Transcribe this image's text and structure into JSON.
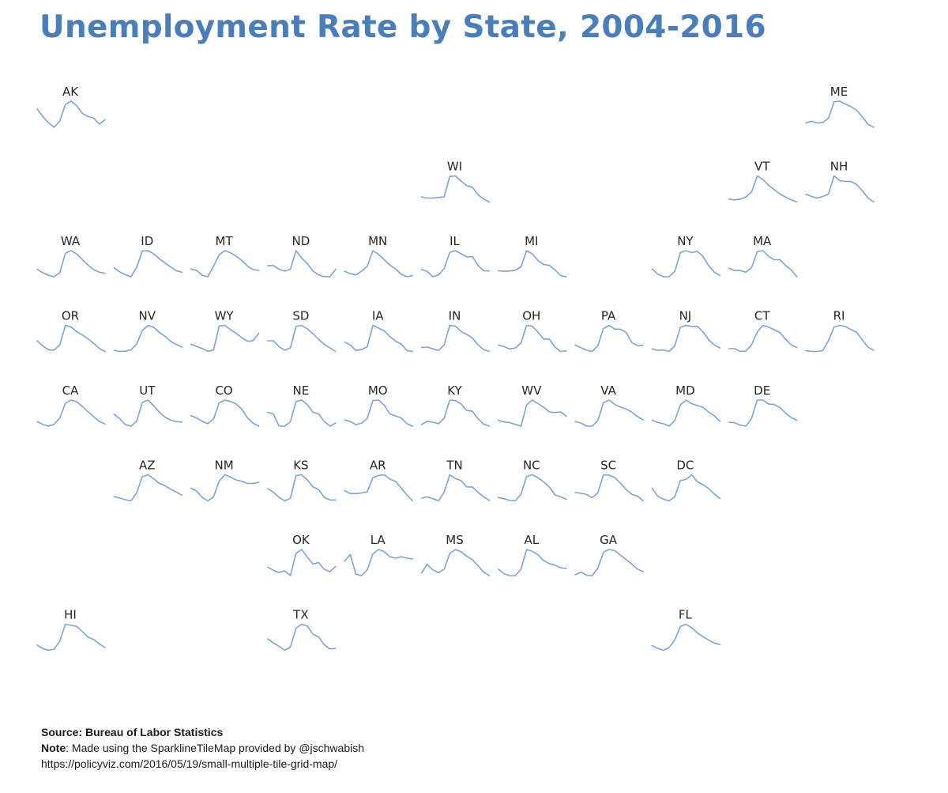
{
  "header": {
    "title": "Unemployment Rate by State, 2004-2016"
  },
  "footer": {
    "source": "Source: Bureau of Labor Statistics",
    "note_label": "Note",
    "note_text": ": Made using the SparklineTileMap provided by @jschwabish",
    "url": "https://policyviz.com/2016/05/19/small-multiple-tile-grid-map/"
  },
  "colors": {
    "title": "#4a7ebb",
    "sparkline": "#7ea3d3",
    "label": "#262626"
  },
  "chart_data": {
    "type": "line",
    "chart_form": "sparkline tile grid map",
    "x": [
      2004,
      2005,
      2006,
      2007,
      2008,
      2009,
      2010,
      2011,
      2012,
      2013,
      2014,
      2015,
      2016
    ],
    "y_scale": "independent per tile",
    "grid": false,
    "series": [
      {
        "name": "AK",
        "row": 0,
        "col": 0,
        "values": [
          7.4,
          6.9,
          6.5,
          6.2,
          6.6,
          7.7,
          7.9,
          7.6,
          7.1,
          6.9,
          6.8,
          6.4,
          6.7
        ]
      },
      {
        "name": "ME",
        "row": 0,
        "col": 10,
        "values": [
          4.6,
          4.9,
          4.6,
          4.7,
          5.4,
          8.1,
          8.2,
          7.7,
          7.3,
          6.7,
          5.6,
          4.4,
          3.9
        ]
      },
      {
        "name": "WI",
        "row": 1,
        "col": 5,
        "values": [
          5.0,
          4.8,
          4.8,
          4.9,
          5.0,
          8.6,
          8.7,
          7.8,
          7.0,
          6.7,
          5.4,
          4.6,
          4.1
        ]
      },
      {
        "name": "VT",
        "row": 1,
        "col": 9,
        "values": [
          3.7,
          3.6,
          3.7,
          4.0,
          4.7,
          6.9,
          6.4,
          5.6,
          5.0,
          4.4,
          4.0,
          3.6,
          3.3
        ]
      },
      {
        "name": "NH",
        "row": 1,
        "col": 10,
        "values": [
          3.9,
          3.6,
          3.4,
          3.6,
          3.9,
          6.2,
          5.6,
          5.5,
          5.5,
          5.1,
          4.3,
          3.4,
          2.9
        ]
      },
      {
        "name": "WA",
        "row": 2,
        "col": 0,
        "values": [
          6.2,
          5.5,
          5.0,
          4.7,
          5.5,
          9.4,
          9.9,
          9.2,
          8.1,
          7.0,
          6.1,
          5.6,
          5.4
        ]
      },
      {
        "name": "ID",
        "row": 2,
        "col": 1,
        "values": [
          4.9,
          3.9,
          3.2,
          2.7,
          5.0,
          9.0,
          9.1,
          8.3,
          7.1,
          6.1,
          5.1,
          4.2,
          3.8
        ]
      },
      {
        "name": "MT",
        "row": 2,
        "col": 2,
        "values": [
          4.2,
          4.0,
          3.3,
          3.1,
          4.6,
          6.2,
          6.8,
          6.5,
          6.0,
          5.4,
          4.6,
          4.1,
          4.0
        ]
      },
      {
        "name": "ND",
        "row": 2,
        "col": 3,
        "values": [
          3.4,
          3.4,
          3.2,
          3.1,
          3.2,
          4.2,
          3.8,
          3.5,
          3.1,
          2.9,
          2.8,
          2.8,
          3.2
        ]
      },
      {
        "name": "MN",
        "row": 2,
        "col": 4,
        "values": [
          4.6,
          4.2,
          4.0,
          4.6,
          5.4,
          8.0,
          7.4,
          6.5,
          5.6,
          5.0,
          4.1,
          3.7,
          3.9
        ]
      },
      {
        "name": "IL",
        "row": 2,
        "col": 5,
        "values": [
          6.2,
          5.8,
          4.6,
          5.0,
          6.4,
          10.0,
          10.4,
          9.7,
          9.0,
          9.1,
          7.1,
          5.9,
          5.9
        ]
      },
      {
        "name": "MI",
        "row": 2,
        "col": 6,
        "values": [
          7.0,
          6.8,
          6.9,
          7.2,
          8.3,
          13.7,
          12.6,
          10.4,
          9.1,
          8.8,
          7.3,
          5.4,
          5.0
        ]
      },
      {
        "name": "NY",
        "row": 2,
        "col": 8,
        "values": [
          5.8,
          5.0,
          4.6,
          4.6,
          5.4,
          8.3,
          8.6,
          8.3,
          8.5,
          7.7,
          6.3,
          5.3,
          4.8
        ]
      },
      {
        "name": "MA",
        "row": 2,
        "col": 9,
        "values": [
          5.2,
          4.8,
          4.8,
          4.5,
          5.3,
          8.1,
          8.3,
          7.3,
          6.7,
          6.7,
          5.7,
          4.9,
          3.7
        ]
      },
      {
        "name": "OR",
        "row": 3,
        "col": 0,
        "values": [
          7.4,
          6.2,
          5.3,
          5.2,
          6.5,
          11.1,
          10.7,
          9.6,
          8.8,
          7.9,
          6.8,
          5.6,
          4.9
        ]
      },
      {
        "name": "NV",
        "row": 3,
        "col": 1,
        "values": [
          4.5,
          4.1,
          4.2,
          4.7,
          6.8,
          11.8,
          13.7,
          13.0,
          11.1,
          9.7,
          7.8,
          6.7,
          5.7
        ]
      },
      {
        "name": "WY",
        "row": 3,
        "col": 2,
        "values": [
          3.8,
          3.5,
          3.2,
          2.8,
          3.0,
          6.3,
          6.4,
          5.8,
          5.3,
          4.7,
          4.2,
          4.3,
          5.3
        ]
      },
      {
        "name": "SD",
        "row": 3,
        "col": 3,
        "values": [
          3.7,
          3.7,
          3.2,
          2.9,
          3.1,
          4.9,
          5.0,
          4.7,
          4.3,
          3.8,
          3.4,
          3.1,
          2.8
        ]
      },
      {
        "name": "IA",
        "row": 3,
        "col": 4,
        "values": [
          4.6,
          4.3,
          3.7,
          3.8,
          4.1,
          6.4,
          6.1,
          5.8,
          5.2,
          4.7,
          4.4,
          3.7,
          3.6
        ]
      },
      {
        "name": "IN",
        "row": 3,
        "col": 5,
        "values": [
          5.3,
          5.4,
          5.0,
          4.6,
          5.9,
          10.4,
          10.2,
          9.0,
          8.3,
          7.5,
          5.9,
          4.8,
          4.4
        ]
      },
      {
        "name": "OH",
        "row": 3,
        "col": 6,
        "values": [
          6.2,
          5.9,
          5.4,
          5.6,
          6.6,
          10.2,
          10.0,
          8.8,
          7.4,
          7.4,
          5.8,
          4.9,
          5.0
        ]
      },
      {
        "name": "PA",
        "row": 3,
        "col": 7,
        "values": [
          5.4,
          5.0,
          4.6,
          4.4,
          5.3,
          8.0,
          8.5,
          7.9,
          7.9,
          7.4,
          5.8,
          5.3,
          5.4
        ]
      },
      {
        "name": "NJ",
        "row": 3,
        "col": 8,
        "values": [
          4.8,
          4.5,
          4.6,
          4.3,
          5.4,
          9.1,
          9.5,
          9.3,
          9.3,
          8.2,
          6.6,
          5.6,
          5.0
        ]
      },
      {
        "name": "CT",
        "row": 3,
        "col": 9,
        "values": [
          4.9,
          4.9,
          4.4,
          4.5,
          5.6,
          7.9,
          9.1,
          8.8,
          8.3,
          7.8,
          6.6,
          5.6,
          5.1
        ]
      },
      {
        "name": "RI",
        "row": 3,
        "col": 10,
        "values": [
          5.2,
          5.0,
          5.0,
          5.2,
          7.6,
          10.8,
          11.2,
          10.9,
          10.2,
          9.5,
          7.7,
          6.0,
          5.3
        ]
      },
      {
        "name": "CA",
        "row": 4,
        "col": 0,
        "values": [
          6.2,
          5.4,
          4.9,
          5.4,
          7.2,
          11.3,
          12.2,
          11.7,
          10.4,
          8.9,
          7.5,
          6.2,
          5.5
        ]
      },
      {
        "name": "UT",
        "row": 4,
        "col": 1,
        "values": [
          5.0,
          4.1,
          2.9,
          2.6,
          3.6,
          7.3,
          7.8,
          6.7,
          5.4,
          4.4,
          3.8,
          3.5,
          3.4
        ]
      },
      {
        "name": "CO",
        "row": 4,
        "col": 2,
        "values": [
          5.5,
          5.0,
          4.3,
          3.8,
          4.8,
          8.1,
          8.7,
          8.4,
          7.9,
          6.8,
          5.0,
          3.9,
          3.3
        ]
      },
      {
        "name": "NE",
        "row": 4,
        "col": 3,
        "values": [
          3.9,
          3.8,
          3.0,
          3.0,
          3.3,
          4.6,
          4.7,
          4.4,
          3.9,
          3.8,
          3.3,
          3.0,
          3.2
        ]
      },
      {
        "name": "MO",
        "row": 4,
        "col": 4,
        "values": [
          5.7,
          5.4,
          4.8,
          5.1,
          6.0,
          9.5,
          9.6,
          8.6,
          6.9,
          6.5,
          6.1,
          5.0,
          4.5
        ]
      },
      {
        "name": "KY",
        "row": 4,
        "col": 5,
        "values": [
          5.3,
          6.0,
          5.8,
          5.5,
          6.6,
          10.3,
          10.2,
          9.5,
          8.2,
          8.0,
          6.5,
          5.4,
          5.0
        ]
      },
      {
        "name": "WV",
        "row": 4,
        "col": 6,
        "values": [
          5.3,
          5.0,
          4.9,
          4.6,
          4.3,
          7.9,
          8.7,
          8.1,
          7.5,
          6.7,
          6.6,
          6.7,
          6.0
        ]
      },
      {
        "name": "VA",
        "row": 4,
        "col": 7,
        "values": [
          3.7,
          3.5,
          3.0,
          3.0,
          3.9,
          6.7,
          7.1,
          6.4,
          6.0,
          5.7,
          5.2,
          4.5,
          4.0
        ]
      },
      {
        "name": "MD",
        "row": 4,
        "col": 8,
        "values": [
          4.5,
          4.1,
          3.9,
          3.5,
          4.4,
          7.0,
          7.8,
          7.2,
          6.9,
          6.6,
          5.8,
          5.2,
          4.3
        ]
      },
      {
        "name": "DE",
        "row": 4,
        "col": 9,
        "values": [
          4.1,
          4.0,
          3.6,
          3.4,
          4.8,
          8.0,
          8.0,
          7.3,
          7.2,
          6.7,
          5.7,
          4.9,
          4.4
        ]
      },
      {
        "name": "AZ",
        "row": 5,
        "col": 1,
        "values": [
          5.0,
          4.6,
          4.2,
          3.9,
          5.9,
          9.9,
          10.4,
          9.4,
          8.3,
          7.7,
          6.8,
          6.1,
          5.3
        ]
      },
      {
        "name": "NM",
        "row": 5,
        "col": 2,
        "values": [
          5.7,
          5.2,
          4.1,
          3.5,
          4.2,
          6.9,
          8.0,
          7.6,
          7.1,
          6.9,
          6.5,
          6.5,
          6.7
        ]
      },
      {
        "name": "KS",
        "row": 5,
        "col": 3,
        "values": [
          5.5,
          5.1,
          4.5,
          4.1,
          4.4,
          7.0,
          7.1,
          6.5,
          5.7,
          5.4,
          4.5,
          4.2,
          4.2
        ]
      },
      {
        "name": "AR",
        "row": 5,
        "col": 4,
        "values": [
          5.7,
          5.2,
          5.2,
          5.3,
          5.5,
          7.8,
          8.2,
          8.3,
          7.6,
          7.2,
          6.1,
          5.0,
          4.0
        ]
      },
      {
        "name": "TN",
        "row": 5,
        "col": 5,
        "values": [
          5.3,
          5.6,
          5.2,
          4.7,
          6.6,
          10.5,
          9.7,
          9.2,
          7.8,
          7.8,
          6.6,
          5.6,
          4.8
        ]
      },
      {
        "name": "NC",
        "row": 5,
        "col": 6,
        "values": [
          5.5,
          5.2,
          4.8,
          4.7,
          6.3,
          10.5,
          10.9,
          10.2,
          9.2,
          8.0,
          6.1,
          5.7,
          5.1
        ]
      },
      {
        "name": "SC",
        "row": 5,
        "col": 7,
        "values": [
          6.9,
          6.7,
          6.4,
          5.6,
          6.8,
          11.3,
          11.2,
          10.6,
          9.2,
          7.6,
          6.4,
          6.0,
          4.8
        ]
      },
      {
        "name": "DC",
        "row": 5,
        "col": 8,
        "values": [
          7.9,
          6.5,
          6.0,
          5.7,
          6.4,
          9.2,
          9.4,
          10.2,
          9.0,
          8.5,
          7.8,
          6.9,
          6.1
        ]
      },
      {
        "name": "OK",
        "row": 6,
        "col": 3,
        "values": [
          4.8,
          4.4,
          4.1,
          4.3,
          3.7,
          6.6,
          7.1,
          6.1,
          5.2,
          5.4,
          4.5,
          4.2,
          4.9
        ]
      },
      {
        "name": "LA",
        "row": 6,
        "col": 4,
        "values": [
          5.8,
          6.7,
          4.0,
          3.8,
          4.6,
          6.8,
          7.4,
          7.1,
          6.4,
          6.2,
          6.4,
          6.2,
          6.1
        ]
      },
      {
        "name": "MS",
        "row": 6,
        "col": 5,
        "values": [
          6.2,
          7.8,
          6.8,
          6.3,
          6.9,
          9.7,
          10.4,
          10.0,
          9.2,
          8.6,
          7.5,
          6.4,
          5.8
        ]
      },
      {
        "name": "AL",
        "row": 6,
        "col": 6,
        "values": [
          5.7,
          4.5,
          4.0,
          4.0,
          5.7,
          11.0,
          10.5,
          9.6,
          8.0,
          7.2,
          6.8,
          6.1,
          5.9
        ]
      },
      {
        "name": "GA",
        "row": 6,
        "col": 7,
        "values": [
          4.7,
          5.3,
          4.6,
          4.5,
          6.2,
          9.9,
          10.5,
          10.2,
          9.2,
          8.2,
          7.1,
          6.0,
          5.4
        ]
      },
      {
        "name": "HI",
        "row": 7,
        "col": 0,
        "values": [
          3.4,
          2.8,
          2.5,
          2.7,
          4.1,
          7.1,
          6.9,
          6.7,
          5.8,
          4.8,
          4.4,
          3.6,
          3.0
        ]
      },
      {
        "name": "TX",
        "row": 7,
        "col": 3,
        "values": [
          6.0,
          5.4,
          4.9,
          4.3,
          4.8,
          7.6,
          8.2,
          7.9,
          6.7,
          6.3,
          5.1,
          4.5,
          4.6
        ]
      },
      {
        "name": "FL",
        "row": 7,
        "col": 8,
        "values": [
          4.6,
          3.8,
          3.2,
          4.0,
          6.3,
          10.4,
          11.1,
          10.0,
          8.5,
          7.3,
          6.3,
          5.4,
          4.9
        ]
      }
    ]
  }
}
